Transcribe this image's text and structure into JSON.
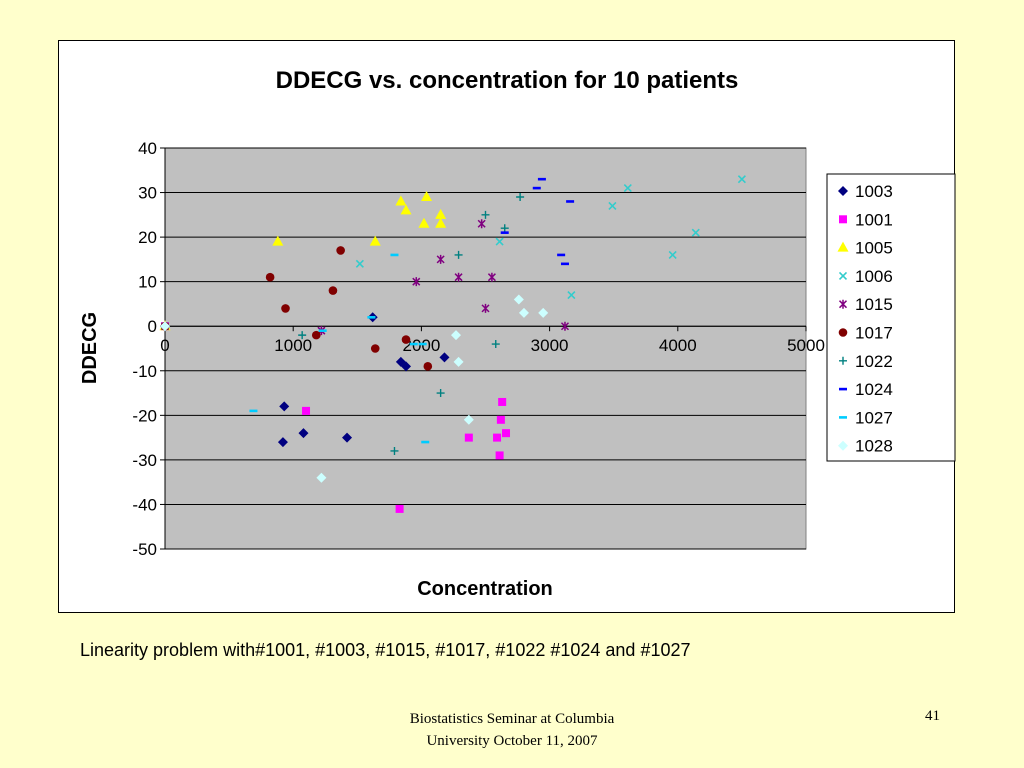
{
  "caption": "Linearity problem with#1001, #1003, #1015, #1017, #1022 #1024 and  #1027",
  "footer": {
    "line1": "Biostatistics Seminar at Columbia",
    "line2": "University October 11, 2007",
    "slide_number": "41"
  },
  "chart_data": {
    "type": "scatter",
    "title": "DDECG vs. concentration for 10 patients",
    "xlabel": "Concentration",
    "ylabel": "DDECG",
    "xlim": [
      0,
      5000
    ],
    "ylim": [
      -50,
      40
    ],
    "x_ticks": [
      "0",
      "1000",
      "2000",
      "3000",
      "4000",
      "5000"
    ],
    "y_ticks": [
      "40",
      "30",
      "20",
      "10",
      "0",
      "-10",
      "-20",
      "-30",
      "-40",
      "-50"
    ],
    "grid": "horizontal",
    "legend_position": "right",
    "plot_background": "#c0c0c0",
    "series": [
      {
        "name": "1003",
        "marker": "diamond",
        "color": "#000080",
        "points": [
          [
            0,
            0
          ],
          [
            930,
            -18
          ],
          [
            920,
            -26
          ],
          [
            1080,
            -24
          ],
          [
            1420,
            -25
          ],
          [
            1620,
            2
          ],
          [
            1840,
            -8
          ],
          [
            1880,
            -9
          ],
          [
            2180,
            -7
          ]
        ]
      },
      {
        "name": "1001",
        "marker": "square",
        "color": "#ff00ff",
        "points": [
          [
            0,
            0
          ],
          [
            1100,
            -19
          ],
          [
            1830,
            -41
          ],
          [
            2370,
            -25
          ],
          [
            2590,
            -25
          ],
          [
            2610,
            -29
          ],
          [
            2620,
            -21
          ],
          [
            2630,
            -17
          ],
          [
            2660,
            -24
          ]
        ]
      },
      {
        "name": "1005",
        "marker": "triangle",
        "color": "#ffff00",
        "points": [
          [
            0,
            0
          ],
          [
            880,
            19
          ],
          [
            1640,
            19
          ],
          [
            1840,
            28
          ],
          [
            1880,
            26
          ],
          [
            2020,
            23
          ],
          [
            2040,
            29
          ],
          [
            2150,
            25
          ],
          [
            2150,
            23
          ]
        ]
      },
      {
        "name": "1006",
        "marker": "x",
        "color": "#33cccc",
        "points": [
          [
            0,
            0
          ],
          [
            1520,
            14
          ],
          [
            2610,
            19
          ],
          [
            3170,
            7
          ],
          [
            3490,
            27
          ],
          [
            3610,
            31
          ],
          [
            3960,
            16
          ],
          [
            4140,
            21
          ],
          [
            4500,
            33
          ]
        ]
      },
      {
        "name": "1015",
        "marker": "star",
        "color": "#800080",
        "points": [
          [
            0,
            0
          ],
          [
            1220,
            -1
          ],
          [
            1960,
            10
          ],
          [
            2150,
            15
          ],
          [
            2290,
            11
          ],
          [
            2470,
            23
          ],
          [
            2500,
            4
          ],
          [
            2550,
            11
          ],
          [
            3120,
            0
          ]
        ]
      },
      {
        "name": "1017",
        "marker": "circle",
        "color": "#800000",
        "points": [
          [
            0,
            0
          ],
          [
            820,
            11
          ],
          [
            940,
            4
          ],
          [
            1180,
            -2
          ],
          [
            1310,
            8
          ],
          [
            1370,
            17
          ],
          [
            1640,
            -5
          ],
          [
            1880,
            -3
          ],
          [
            2050,
            -9
          ]
        ]
      },
      {
        "name": "1022",
        "marker": "plus",
        "color": "#008080",
        "points": [
          [
            0,
            0
          ],
          [
            1070,
            -2
          ],
          [
            1790,
            -28
          ],
          [
            2150,
            -15
          ],
          [
            2290,
            16
          ],
          [
            2500,
            25
          ],
          [
            2580,
            -4
          ],
          [
            2650,
            22
          ],
          [
            2770,
            29
          ]
        ]
      },
      {
        "name": "1024",
        "marker": "dash",
        "color": "#0000ff",
        "points": [
          [
            0,
            0
          ],
          [
            2650,
            21
          ],
          [
            2900,
            31
          ],
          [
            2940,
            33
          ],
          [
            3090,
            16
          ],
          [
            3120,
            14
          ],
          [
            3160,
            28
          ]
        ]
      },
      {
        "name": "1027",
        "marker": "dash",
        "color": "#00ccff",
        "points": [
          [
            0,
            0
          ],
          [
            690,
            -19
          ],
          [
            1230,
            -1
          ],
          [
            1610,
            2
          ],
          [
            1790,
            16
          ],
          [
            1940,
            -4
          ],
          [
            2010,
            -4
          ],
          [
            2030,
            -26
          ]
        ]
      },
      {
        "name": "1028",
        "marker": "diamond",
        "color": "#ccffff",
        "points": [
          [
            0,
            0
          ],
          [
            1220,
            -34
          ],
          [
            2270,
            -2
          ],
          [
            2290,
            -8
          ],
          [
            2370,
            -21
          ],
          [
            2760,
            6
          ],
          [
            2800,
            3
          ],
          [
            2950,
            3
          ]
        ]
      }
    ]
  }
}
